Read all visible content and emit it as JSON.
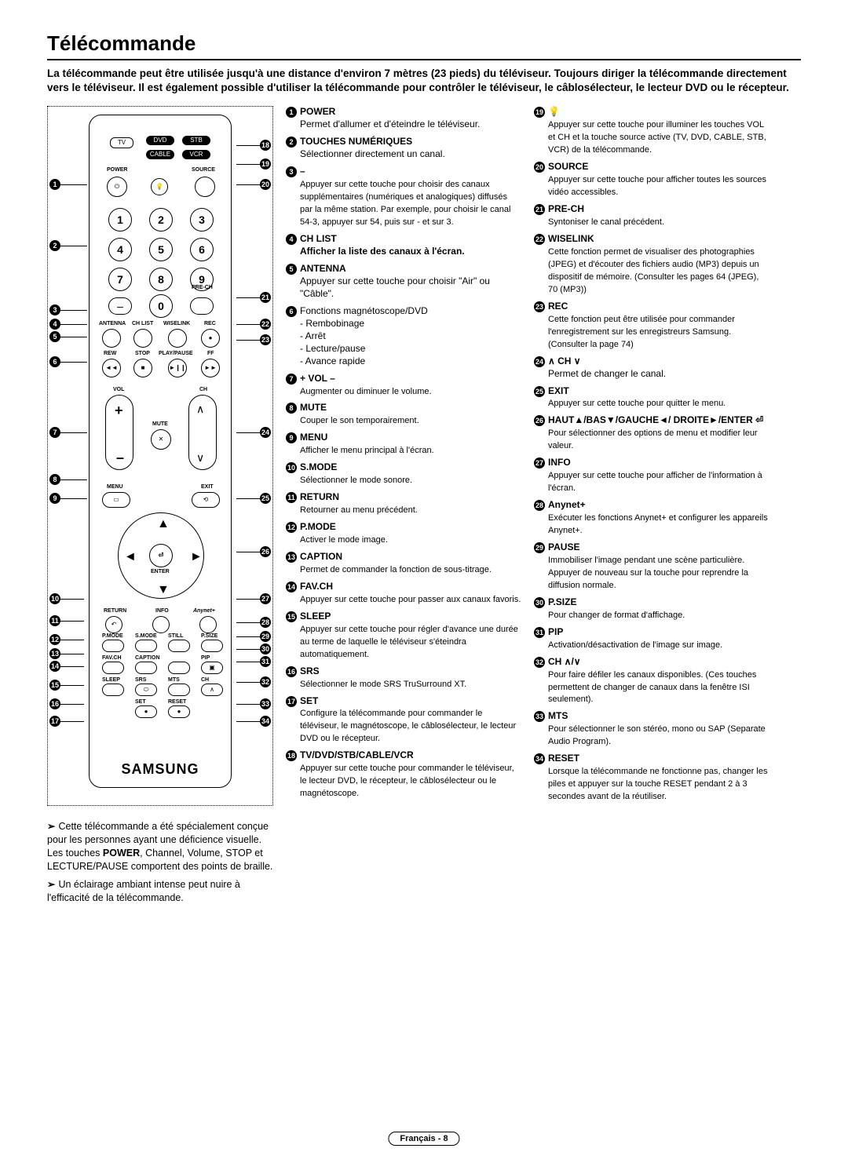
{
  "title": "Télécommande",
  "intro": "La télécommande peut être utilisée jusqu'à une distance d'environ 7 mètres (23 pieds) du téléviseur. Toujours diriger la télécommande directement vers le téléviseur. Il est également possible d'utiliser la télécommande pour contrôler le téléviseur, le câblosélecteur, le lecteur DVD ou le récepteur.",
  "remote": {
    "top_buttons": [
      "TV",
      "DVD",
      "STB",
      "CABLE",
      "VCR"
    ],
    "labels": [
      "POWER",
      "SOURCE",
      "PRE-CH",
      "ANTENNA",
      "CH LIST",
      "WISELINK",
      "REC",
      "REW",
      "STOP",
      "PLAY/PAUSE",
      "FF",
      "VOL",
      "CH",
      "MUTE",
      "MENU",
      "EXIT",
      "ENTER",
      "RETURN",
      "INFO",
      "Anynet+",
      "P.MODE",
      "S.MODE",
      "STILL",
      "P.SIZE",
      "FAV.CH",
      "CAPTION",
      "PIP",
      "SLEEP",
      "SRS",
      "MTS",
      "CH",
      "SET",
      "RESET"
    ],
    "brand": "SAMSUNG"
  },
  "notes": [
    "Cette télécommande a été spécialement conçue pour les personnes ayant une déficience visuelle. Les touches POWER, Channel, Volume, STOP et LECTURE/PAUSE comportent des points de braille.",
    "Un éclairage ambiant intense peut nuire à l'efficacité de la télécommande."
  ],
  "notes_bold_word": "POWER",
  "mid_items": [
    {
      "n": "1",
      "hd": "POWER",
      "txt": "Permet d'allumer et d'éteindre le téléviseur."
    },
    {
      "n": "2",
      "hd": "TOUCHES NUMÉRIQUES",
      "txt": "Sélectionner directement un canal."
    },
    {
      "n": "3",
      "hd": "–",
      "txt": "Appuyer sur cette touche pour choisir des canaux supplémentaires (numériques et analogiques) diffusés par la même station. Par exemple, pour choisir le canal 54-3, appuyer sur 54, puis sur - et sur 3.",
      "small": true
    },
    {
      "n": "4",
      "hd": "CH LIST",
      "txt": "Afficher la liste des canaux à l'écran.",
      "boldtxt": true
    },
    {
      "n": "5",
      "hd": "ANTENNA",
      "txt": "Appuyer sur cette touche pour choisir \"Air\" ou \"Câble\"."
    },
    {
      "n": "6",
      "hd": "",
      "txt": "Fonctions magnétoscope/DVD\n- Rembobinage\n- Arrêt\n- Lecture/pause\n- Avance rapide",
      "plain": true
    },
    {
      "n": "7",
      "hd": "+ VOL –",
      "txt": "Augmenter ou diminuer le volume.",
      "small": true
    },
    {
      "n": "8",
      "hd": "MUTE",
      "txt": "Couper le son temporairement.",
      "small": true
    },
    {
      "n": "9",
      "hd": "MENU",
      "txt": "Afficher le menu principal à l'écran.",
      "small": true
    },
    {
      "n": "10",
      "hd": "S.MODE",
      "txt": "Sélectionner le mode sonore.",
      "small": true
    },
    {
      "n": "11",
      "hd": "RETURN",
      "txt": "Retourner au menu précédent.",
      "small": true
    },
    {
      "n": "12",
      "hd": "P.MODE",
      "txt": "Activer le mode image.",
      "small": true
    },
    {
      "n": "13",
      "hd": "CAPTION",
      "txt": "Permet de commander la fonction de sous-titrage.",
      "small": true
    },
    {
      "n": "14",
      "hd": "FAV.CH",
      "txt": "Appuyer sur cette touche pour passer aux canaux favoris.",
      "small": true
    },
    {
      "n": "15",
      "hd": "SLEEP",
      "txt": "Appuyer sur cette touche pour régler d'avance une durée au terme de laquelle le téléviseur s'éteindra automatiquement.",
      "small": true
    },
    {
      "n": "16",
      "hd": "SRS",
      "txt": "Sélectionner le mode SRS TruSurround XT.",
      "small": true
    },
    {
      "n": "17",
      "hd": "SET",
      "txt": "Configure la télécommande pour commander le téléviseur, le magnétoscope, le câblosélecteur, le lecteur DVD ou le récepteur.",
      "small": true
    },
    {
      "n": "18",
      "hd": "TV/DVD/STB/CABLE/VCR",
      "txt": "Appuyer sur cette touche pour commander le téléviseur, le lecteur DVD, le récepteur, le câblosélecteur ou le magnétoscope.",
      "small": true
    }
  ],
  "right_items": [
    {
      "n": "19",
      "hd": "",
      "txt": "Appuyer sur cette touche pour illuminer les touches VOL et CH et la touche source active (TV, DVD, CABLE, STB, VCR) de la télécommande.",
      "icon": "💡",
      "small": true
    },
    {
      "n": "20",
      "hd": "SOURCE",
      "txt": "Appuyer sur cette touche pour afficher toutes les sources vidéo accessibles.",
      "small": true
    },
    {
      "n": "21",
      "hd": "PRE-CH",
      "txt": "Syntoniser le canal précédent.",
      "small": true
    },
    {
      "n": "22",
      "hd": "WISELINK",
      "txt": "Cette fonction permet de visualiser des photographies (JPEG) et d'écouter des fichiers audio (MP3) depuis un dispositif de mémoire. (Consulter les pages 64 (JPEG), 70 (MP3))",
      "small": true
    },
    {
      "n": "23",
      "hd": "REC",
      "txt": "Cette fonction peut être utilisée pour commander l'enregistrement sur les enregistreurs Samsung. (Consulter la page 74)",
      "small": true
    },
    {
      "n": "24",
      "hd": "∧ CH ∨",
      "txt": "Permet de changer le canal."
    },
    {
      "n": "25",
      "hd": "EXIT",
      "txt": "Appuyer sur cette touche pour quitter le menu.",
      "small": true
    },
    {
      "n": "26",
      "hd": "HAUT▲/BAS▼/GAUCHE◄/ DROITE►/ENTER ⏎",
      "txt": "Pour sélectionner des options de menu et modifier leur valeur.",
      "small": true,
      "mixed": true
    },
    {
      "n": "27",
      "hd": "INFO",
      "txt": "Appuyer sur cette touche pour afficher de l'information à l'écran.",
      "small": true
    },
    {
      "n": "28",
      "hd": "Anynet+",
      "txt": "Exécuter les fonctions Anynet+ et configurer les appareils Anynet+.",
      "small": true,
      "mixed": true
    },
    {
      "n": "29",
      "hd": "PAUSE",
      "txt": "Immobiliser l'image pendant une scène particulière. Appuyer de nouveau sur la touche pour reprendre la diffusion normale.",
      "small": true
    },
    {
      "n": "30",
      "hd": "P.SIZE",
      "txt": "Pour changer de format d'affichage.",
      "small": true
    },
    {
      "n": "31",
      "hd": "PIP",
      "txt": "Activation/désactivation de l'image sur image.",
      "small": true
    },
    {
      "n": "32",
      "hd": "CH ∧/∨",
      "txt": "Pour faire défiler les canaux disponibles. (Ces touches permettent de changer de canaux dans la fenêtre ISI seulement).",
      "small": true
    },
    {
      "n": "33",
      "hd": "MTS",
      "txt": "Pour sélectionner le son stéréo, mono ou SAP (Separate Audio Program).",
      "small": true
    },
    {
      "n": "34",
      "hd": "RESET",
      "txt": "Lorsque la télécommande ne fonctionne pas, changer les piles et appuyer sur la touche RESET pendant 2 à 3 secondes avant de la réutiliser.",
      "small": true
    }
  ],
  "footer": "Français - 8"
}
